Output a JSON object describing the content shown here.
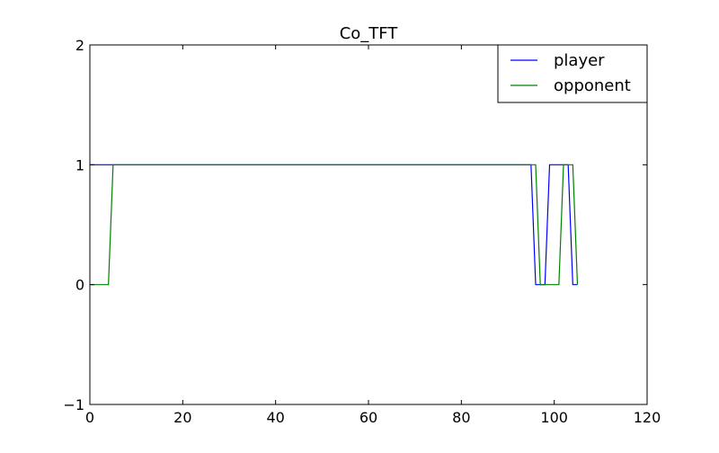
{
  "chart_data": {
    "type": "line",
    "title": "Co_TFT",
    "xlabel": "",
    "ylabel": "",
    "xlim": [
      0,
      120
    ],
    "ylim": [
      -1,
      2
    ],
    "xticks": [
      0,
      20,
      40,
      60,
      80,
      100,
      120
    ],
    "yticks": [
      -1,
      0,
      1,
      2
    ],
    "xtick_labels": [
      "0",
      "20",
      "40",
      "60",
      "80",
      "100",
      "120"
    ],
    "ytick_labels": [
      "−1",
      "0",
      "1",
      "2"
    ],
    "grid": false,
    "legend_position": "top-right",
    "series": [
      {
        "name": "player",
        "color": "#0000ff",
        "x": [
          0,
          1,
          2,
          3,
          4,
          5,
          95,
          96,
          97,
          98,
          99,
          100,
          101,
          102,
          103,
          104,
          105
        ],
        "y": [
          1,
          1,
          1,
          1,
          1,
          1,
          1,
          0,
          0,
          0,
          1,
          1,
          1,
          1,
          1,
          0,
          0
        ]
      },
      {
        "name": "opponent",
        "color": "#008000",
        "x": [
          0,
          1,
          2,
          3,
          4,
          5,
          95,
          96,
          97,
          98,
          99,
          100,
          101,
          102,
          103,
          104,
          105
        ],
        "y": [
          0,
          0,
          0,
          0,
          0,
          1,
          1,
          1,
          0,
          0,
          0,
          0,
          0,
          1,
          1,
          1,
          0
        ]
      }
    ]
  }
}
